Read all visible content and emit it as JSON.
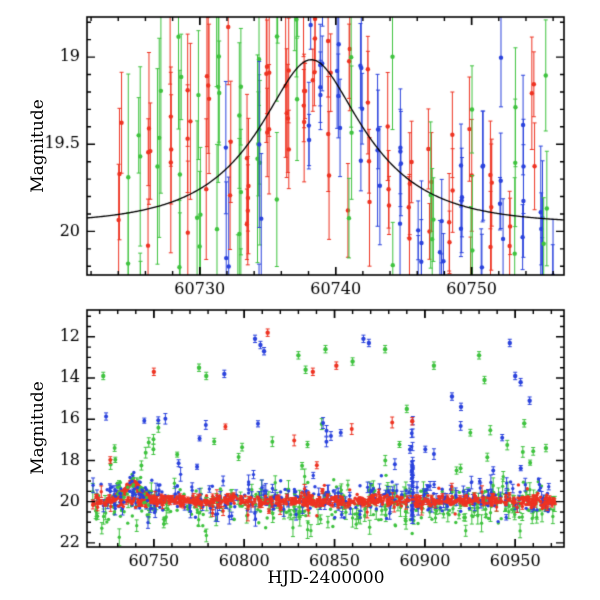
{
  "figure": {
    "background": "#ffffff"
  },
  "colors": {
    "red": "#ee3322",
    "green": "#3fc33f",
    "blue": "#2b43dd",
    "model": "#000000",
    "axis": "#000000"
  },
  "chart_data": [
    {
      "type": "scatter",
      "panel": "top",
      "title": "",
      "xlabel": "",
      "ylabel": "Magnitude",
      "x_range": [
        60721.7,
        60756.8
      ],
      "mag_range": [
        18.77,
        20.25
      ],
      "x_major_ticks": [
        60730,
        60740,
        60750
      ],
      "x_minor_step": 2,
      "y_major_ticks": [
        19,
        19.5,
        20
      ],
      "y_tick_labels": [
        "19",
        "19.5",
        "20"
      ],
      "y_minor_step": 0.1,
      "y_axis_inverted": true,
      "grid": false,
      "legend": "none",
      "model": {
        "kind": "paczynski-microlensing",
        "baseline_mag": 19.96,
        "t0": 60738.2,
        "tE": 7.0,
        "u0": 0.45
      },
      "seed": 7,
      "clusters": [
        [
          60724.1,
          "r",
          3,
          0.35,
          0.3
        ],
        [
          60724.8,
          "g",
          2,
          0.45,
          0.4
        ],
        [
          60725.6,
          "g",
          4,
          0.5,
          0.35
        ],
        [
          60726.3,
          "r",
          4,
          0.45,
          0.3
        ],
        [
          60727.0,
          "g",
          3,
          0.5,
          0.4
        ],
        [
          60727.8,
          "r",
          4,
          0.5,
          0.35
        ],
        [
          60728.5,
          "g",
          5,
          0.55,
          0.4
        ],
        [
          60729.2,
          "r",
          5,
          0.5,
          0.3
        ],
        [
          60729.9,
          "g",
          4,
          0.55,
          0.4
        ],
        [
          60730.6,
          "r",
          5,
          0.5,
          0.3
        ],
        [
          60731.3,
          "g",
          5,
          0.55,
          0.4
        ],
        [
          60732.0,
          "b",
          3,
          0.5,
          0.35
        ],
        [
          60732.2,
          "r",
          4,
          0.5,
          0.3
        ],
        [
          60732.9,
          "g",
          6,
          0.55,
          0.4
        ],
        [
          60733.6,
          "r",
          5,
          0.45,
          0.3
        ],
        [
          60734.3,
          "g",
          5,
          0.5,
          0.4
        ],
        [
          60734.5,
          "b",
          3,
          0.45,
          0.35
        ],
        [
          60735.0,
          "r",
          5,
          0.45,
          0.3
        ],
        [
          60735.7,
          "g",
          5,
          0.5,
          0.35
        ],
        [
          60736.4,
          "r",
          5,
          0.4,
          0.3
        ],
        [
          60737.1,
          "g",
          4,
          0.35,
          0.3
        ],
        [
          60737.6,
          "r",
          5,
          0.3,
          0.25
        ],
        [
          60738.1,
          "b",
          4,
          0.25,
          0.2
        ],
        [
          60738.4,
          "r",
          4,
          0.25,
          0.2
        ],
        [
          60738.9,
          "b",
          5,
          0.25,
          0.2
        ],
        [
          60739.5,
          "r",
          4,
          0.3,
          0.25
        ],
        [
          60740.2,
          "b",
          4,
          0.3,
          0.25
        ],
        [
          60740.9,
          "r",
          3,
          0.3,
          0.25
        ],
        [
          60741.1,
          "g",
          3,
          0.35,
          0.3
        ],
        [
          60741.8,
          "b",
          4,
          0.3,
          0.25
        ],
        [
          60742.5,
          "r",
          4,
          0.3,
          0.25
        ],
        [
          60743.2,
          "b",
          3,
          0.35,
          0.3
        ],
        [
          60743.9,
          "r",
          3,
          0.3,
          0.25
        ],
        [
          60744.1,
          "g",
          2,
          0.35,
          0.3
        ],
        [
          60744.8,
          "b",
          4,
          0.3,
          0.25
        ],
        [
          60745.5,
          "r",
          4,
          0.3,
          0.25
        ],
        [
          60746.2,
          "b",
          4,
          0.3,
          0.25
        ],
        [
          60746.9,
          "r",
          3,
          0.3,
          0.25
        ],
        [
          60747.1,
          "g",
          3,
          0.35,
          0.3
        ],
        [
          60747.8,
          "b",
          4,
          0.3,
          0.25
        ],
        [
          60748.5,
          "r",
          4,
          0.3,
          0.25
        ],
        [
          60749.2,
          "b",
          4,
          0.3,
          0.25
        ],
        [
          60749.9,
          "r",
          3,
          0.3,
          0.25
        ],
        [
          60750.1,
          "g",
          3,
          0.35,
          0.3
        ],
        [
          60750.8,
          "b",
          4,
          0.3,
          0.25
        ],
        [
          60751.5,
          "r",
          4,
          0.3,
          0.25
        ],
        [
          60752.2,
          "b",
          4,
          0.3,
          0.25
        ],
        [
          60752.9,
          "r",
          3,
          0.3,
          0.25
        ],
        [
          60753.1,
          "g",
          3,
          0.35,
          0.3
        ],
        [
          60753.8,
          "b",
          4,
          0.3,
          0.25
        ],
        [
          60754.5,
          "r",
          3,
          0.3,
          0.25
        ],
        [
          60755.2,
          "b",
          4,
          0.35,
          0.3
        ],
        [
          60755.4,
          "g",
          3,
          0.4,
          0.3
        ],
        [
          60755.9,
          "b",
          3,
          0.35,
          0.3
        ]
      ]
    },
    {
      "type": "scatter",
      "panel": "bottom",
      "title": "",
      "xlabel": "HJD-2400000",
      "ylabel": "Magnitude",
      "x_range": [
        60713,
        60977
      ],
      "mag_range": [
        10.7,
        22.2
      ],
      "x_major_ticks": [
        60750,
        60800,
        60850,
        60900,
        60950
      ],
      "x_minor_step": 10,
      "y_major_ticks": [
        12,
        14,
        16,
        18,
        20,
        22
      ],
      "y_tick_labels": [
        "12",
        "14",
        "16",
        "18",
        "20",
        "22"
      ],
      "y_minor_step": 0.5,
      "y_axis_inverted": true,
      "grid": false,
      "legend": "none",
      "seed": 11,
      "x_data_range": [
        60716,
        60972
      ],
      "bands": [
        [
          "g",
          430,
          20.15,
          0.55,
          0.3
        ],
        [
          "b",
          340,
          19.85,
          0.45,
          0.25
        ],
        [
          "r",
          650,
          19.95,
          0.13,
          0.1
        ],
        [
          "r",
          60,
          19.95,
          0.35,
          0.2
        ]
      ],
      "mid_scatter": [
        [
          "g",
          28,
          16.2,
          18.5
        ],
        [
          "b",
          22,
          15.8,
          18.5
        ],
        [
          "r",
          6,
          16.0,
          18.3
        ]
      ],
      "event_bump": {
        "x0": 60728,
        "x1": 60747,
        "series": [
          [
            "r",
            110,
            0.12
          ],
          [
            "g",
            30,
            0.28
          ],
          [
            "b",
            25,
            0.25
          ]
        ]
      },
      "streak": {
        "x": 60893,
        "n": 26,
        "y0": 16.0,
        "y1": 21.3,
        "color": "b"
      },
      "outlier_err": 0.18,
      "outliers": [
        [
          60750,
          13.7,
          "r"
        ],
        [
          60722,
          13.9,
          "g"
        ],
        [
          60775,
          13.5,
          "g"
        ],
        [
          60779,
          13.9,
          "g"
        ],
        [
          60789,
          13.8,
          "b"
        ],
        [
          60806,
          12.1,
          "b"
        ],
        [
          60809,
          12.4,
          "b"
        ],
        [
          60811,
          12.7,
          "b"
        ],
        [
          60813,
          11.8,
          "r"
        ],
        [
          60830,
          12.9,
          "g"
        ],
        [
          60834,
          13.6,
          "g"
        ],
        [
          60838,
          13.7,
          "r"
        ],
        [
          60845,
          12.6,
          "g"
        ],
        [
          60851,
          13.4,
          "r"
        ],
        [
          60860,
          13.2,
          "g"
        ],
        [
          60866,
          12.1,
          "b"
        ],
        [
          60869,
          12.3,
          "b"
        ],
        [
          60878,
          12.6,
          "g"
        ],
        [
          60890,
          15.5,
          "g"
        ],
        [
          60893,
          16.1,
          "r"
        ],
        [
          60905,
          13.4,
          "g"
        ],
        [
          60915,
          14.9,
          "b"
        ],
        [
          60920,
          15.4,
          "b"
        ],
        [
          60930,
          12.9,
          "g"
        ],
        [
          60933,
          14.1,
          "g"
        ],
        [
          60947,
          12.3,
          "b"
        ],
        [
          60950,
          13.9,
          "b"
        ],
        [
          60953,
          14.2,
          "b"
        ],
        [
          60958,
          15.1,
          "b"
        ],
        [
          60955,
          16.2,
          "g"
        ],
        [
          60967,
          17.4,
          "g"
        ]
      ]
    }
  ]
}
